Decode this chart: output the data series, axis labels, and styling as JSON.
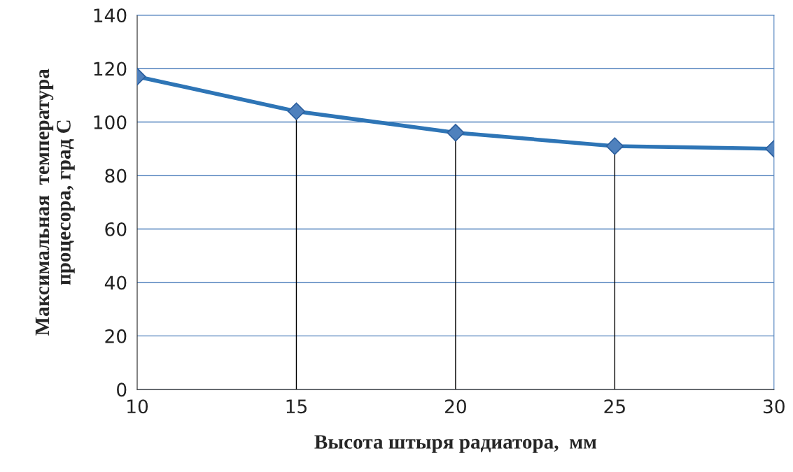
{
  "chart_data": {
    "type": "line",
    "xlabel": "Высота штыря радиатора,  мм",
    "ylabel": "Максимальная  температура\nпроцесора, град С",
    "x": [
      10,
      15,
      20,
      25,
      30
    ],
    "series": [
      {
        "color": "#2e75b6",
        "values": [
          117,
          104,
          96,
          91,
          90
        ],
        "errors": [
          null,
          [
            104,
            0
          ],
          [
            96,
            0
          ],
          [
            91,
            0
          ],
          null
        ]
      }
    ],
    "xlim": [
      10,
      30
    ],
    "xticks": [
      10,
      15,
      20,
      25,
      30
    ],
    "ylim": [
      0,
      140
    ],
    "yticks": [
      0,
      20,
      40,
      60,
      80,
      100,
      120,
      140
    ],
    "grid": "y",
    "marker": "diamond",
    "line_style": "solid"
  }
}
